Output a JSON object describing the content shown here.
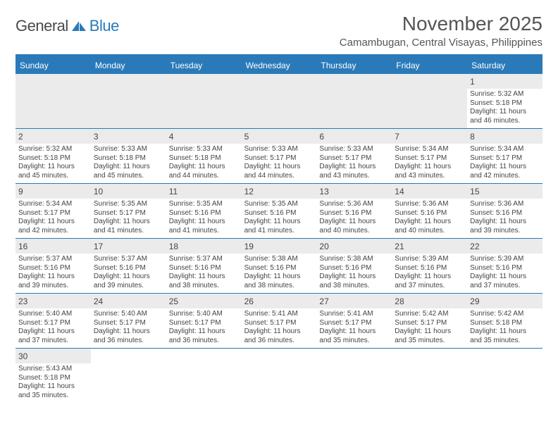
{
  "logo": {
    "text1": "General",
    "text2": "Blue"
  },
  "title": "November 2025",
  "location": "Camambugan, Central Visayas, Philippines",
  "colors": {
    "accent": "#2a7ab9",
    "header_bg": "#ebebeb",
    "text": "#444444",
    "white": "#ffffff"
  },
  "day_names": [
    "Sunday",
    "Monday",
    "Tuesday",
    "Wednesday",
    "Thursday",
    "Friday",
    "Saturday"
  ],
  "leading_blanks": 6,
  "days": [
    {
      "n": 1,
      "sunrise": "5:32 AM",
      "sunset": "5:18 PM",
      "daylight": "11 hours and 46 minutes."
    },
    {
      "n": 2,
      "sunrise": "5:32 AM",
      "sunset": "5:18 PM",
      "daylight": "11 hours and 45 minutes."
    },
    {
      "n": 3,
      "sunrise": "5:33 AM",
      "sunset": "5:18 PM",
      "daylight": "11 hours and 45 minutes."
    },
    {
      "n": 4,
      "sunrise": "5:33 AM",
      "sunset": "5:18 PM",
      "daylight": "11 hours and 44 minutes."
    },
    {
      "n": 5,
      "sunrise": "5:33 AM",
      "sunset": "5:17 PM",
      "daylight": "11 hours and 44 minutes."
    },
    {
      "n": 6,
      "sunrise": "5:33 AM",
      "sunset": "5:17 PM",
      "daylight": "11 hours and 43 minutes."
    },
    {
      "n": 7,
      "sunrise": "5:34 AM",
      "sunset": "5:17 PM",
      "daylight": "11 hours and 43 minutes."
    },
    {
      "n": 8,
      "sunrise": "5:34 AM",
      "sunset": "5:17 PM",
      "daylight": "11 hours and 42 minutes."
    },
    {
      "n": 9,
      "sunrise": "5:34 AM",
      "sunset": "5:17 PM",
      "daylight": "11 hours and 42 minutes."
    },
    {
      "n": 10,
      "sunrise": "5:35 AM",
      "sunset": "5:17 PM",
      "daylight": "11 hours and 41 minutes."
    },
    {
      "n": 11,
      "sunrise": "5:35 AM",
      "sunset": "5:16 PM",
      "daylight": "11 hours and 41 minutes."
    },
    {
      "n": 12,
      "sunrise": "5:35 AM",
      "sunset": "5:16 PM",
      "daylight": "11 hours and 41 minutes."
    },
    {
      "n": 13,
      "sunrise": "5:36 AM",
      "sunset": "5:16 PM",
      "daylight": "11 hours and 40 minutes."
    },
    {
      "n": 14,
      "sunrise": "5:36 AM",
      "sunset": "5:16 PM",
      "daylight": "11 hours and 40 minutes."
    },
    {
      "n": 15,
      "sunrise": "5:36 AM",
      "sunset": "5:16 PM",
      "daylight": "11 hours and 39 minutes."
    },
    {
      "n": 16,
      "sunrise": "5:37 AM",
      "sunset": "5:16 PM",
      "daylight": "11 hours and 39 minutes."
    },
    {
      "n": 17,
      "sunrise": "5:37 AM",
      "sunset": "5:16 PM",
      "daylight": "11 hours and 39 minutes."
    },
    {
      "n": 18,
      "sunrise": "5:37 AM",
      "sunset": "5:16 PM",
      "daylight": "11 hours and 38 minutes."
    },
    {
      "n": 19,
      "sunrise": "5:38 AM",
      "sunset": "5:16 PM",
      "daylight": "11 hours and 38 minutes."
    },
    {
      "n": 20,
      "sunrise": "5:38 AM",
      "sunset": "5:16 PM",
      "daylight": "11 hours and 38 minutes."
    },
    {
      "n": 21,
      "sunrise": "5:39 AM",
      "sunset": "5:16 PM",
      "daylight": "11 hours and 37 minutes."
    },
    {
      "n": 22,
      "sunrise": "5:39 AM",
      "sunset": "5:16 PM",
      "daylight": "11 hours and 37 minutes."
    },
    {
      "n": 23,
      "sunrise": "5:40 AM",
      "sunset": "5:17 PM",
      "daylight": "11 hours and 37 minutes."
    },
    {
      "n": 24,
      "sunrise": "5:40 AM",
      "sunset": "5:17 PM",
      "daylight": "11 hours and 36 minutes."
    },
    {
      "n": 25,
      "sunrise": "5:40 AM",
      "sunset": "5:17 PM",
      "daylight": "11 hours and 36 minutes."
    },
    {
      "n": 26,
      "sunrise": "5:41 AM",
      "sunset": "5:17 PM",
      "daylight": "11 hours and 36 minutes."
    },
    {
      "n": 27,
      "sunrise": "5:41 AM",
      "sunset": "5:17 PM",
      "daylight": "11 hours and 35 minutes."
    },
    {
      "n": 28,
      "sunrise": "5:42 AM",
      "sunset": "5:17 PM",
      "daylight": "11 hours and 35 minutes."
    },
    {
      "n": 29,
      "sunrise": "5:42 AM",
      "sunset": "5:18 PM",
      "daylight": "11 hours and 35 minutes."
    },
    {
      "n": 30,
      "sunrise": "5:43 AM",
      "sunset": "5:18 PM",
      "daylight": "11 hours and 35 minutes."
    }
  ],
  "labels": {
    "sunrise": "Sunrise: ",
    "sunset": "Sunset: ",
    "daylight": "Daylight: "
  }
}
